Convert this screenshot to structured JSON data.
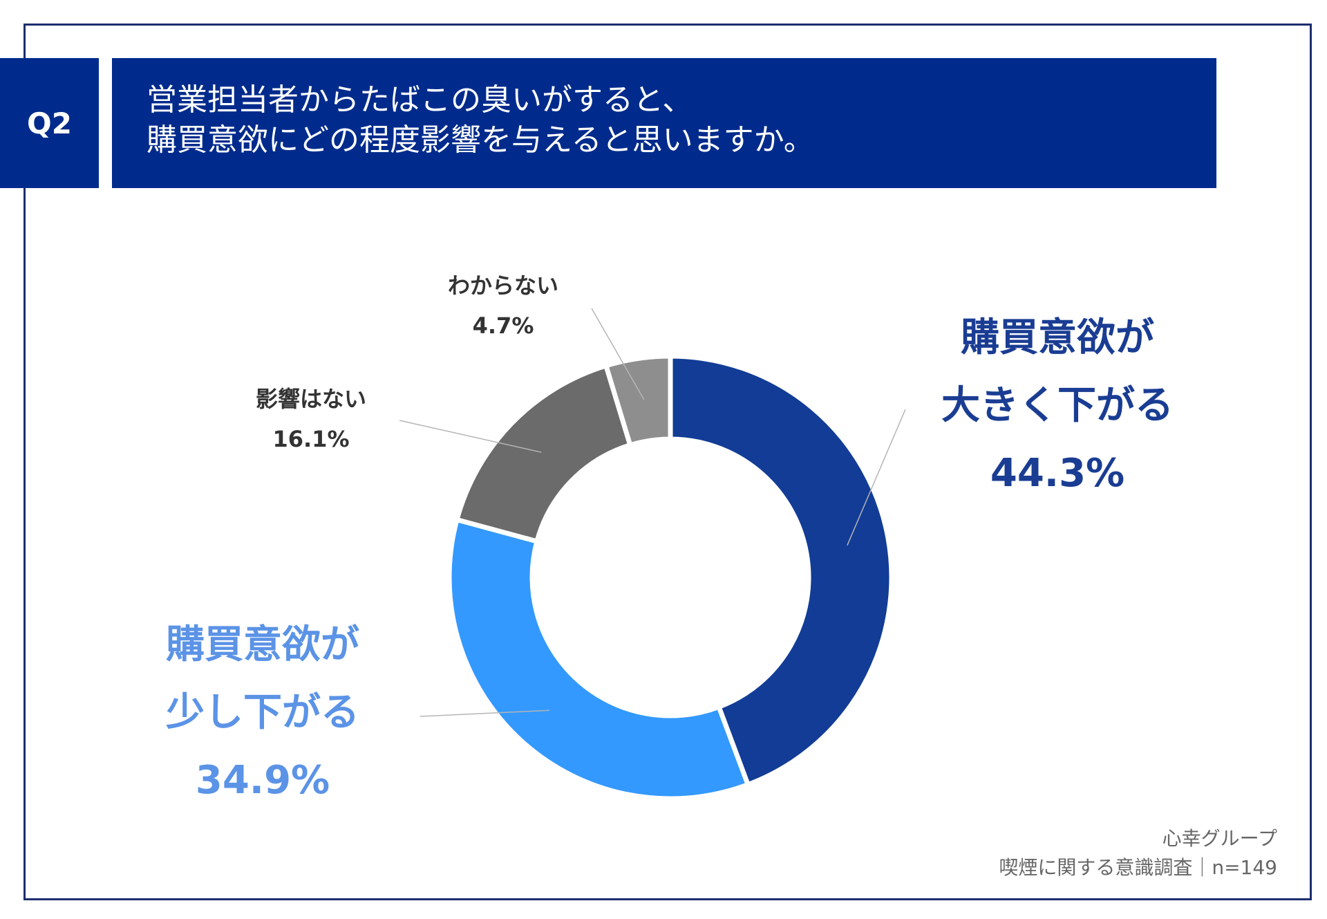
{
  "header": {
    "badge": "Q2",
    "question_lines": [
      "営業担当者からたばこの臭いがすると、",
      "購買意欲にどの程度影響を与えると思いますか。"
    ]
  },
  "chart_data": {
    "type": "pie",
    "donut": true,
    "unit": "%",
    "slices": [
      {
        "label": "購買意欲が大きく下がる",
        "label_lines": [
          "購買意欲が",
          "大きく下がる"
        ],
        "value": 44.3,
        "value_label": "44.3%",
        "color": "#123c96"
      },
      {
        "label": "購買意欲が少し下がる",
        "label_lines": [
          "購買意欲が",
          "少し下がる"
        ],
        "value": 34.9,
        "value_label": "34.9%",
        "color": "#3399ff"
      },
      {
        "label": "影響はない",
        "label_lines": [
          "影響はない"
        ],
        "value": 16.1,
        "value_label": "16.1%",
        "color": "#6b6b6b"
      },
      {
        "label": "わからない",
        "label_lines": [
          "わからない"
        ],
        "value": 4.7,
        "value_label": "4.7%",
        "color": "#8e8e8e"
      }
    ]
  },
  "footer": {
    "source_lines": [
      "心幸グループ",
      "喫煙に関する意識調査｜n=149"
    ]
  }
}
